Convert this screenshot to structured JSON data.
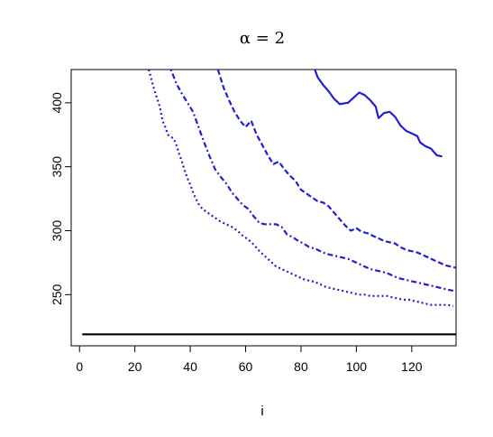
{
  "chart_data": {
    "type": "line",
    "title": "α = 2",
    "xlabel": "i",
    "ylabel": "",
    "xlim": [
      -3,
      136
    ],
    "ylim": [
      210,
      426
    ],
    "x_ticks": [
      0,
      20,
      40,
      60,
      80,
      100,
      120
    ],
    "y_ticks": [
      250,
      300,
      350,
      400
    ],
    "grid": false,
    "legend": "none",
    "series": [
      {
        "style": "solid",
        "color": "#1f1fd6",
        "points": [
          [
            85,
            426
          ],
          [
            86,
            420
          ],
          [
            88,
            414
          ],
          [
            90,
            409
          ],
          [
            92,
            403
          ],
          [
            94,
            399
          ],
          [
            97,
            400
          ],
          [
            99,
            404
          ],
          [
            101,
            408
          ],
          [
            103,
            406
          ],
          [
            105,
            402
          ],
          [
            107,
            397
          ],
          [
            108,
            388
          ],
          [
            110,
            392
          ],
          [
            112,
            393
          ],
          [
            114,
            389
          ],
          [
            116,
            382
          ],
          [
            118,
            378
          ],
          [
            120,
            376
          ],
          [
            122,
            374
          ],
          [
            123,
            369
          ],
          [
            125,
            366
          ],
          [
            127,
            364
          ],
          [
            129,
            359
          ],
          [
            131,
            358
          ]
        ]
      },
      {
        "style": "dashed",
        "color": "#1f1fd6",
        "points": [
          [
            50,
            426
          ],
          [
            52,
            412
          ],
          [
            54,
            402
          ],
          [
            56,
            393
          ],
          [
            58,
            386
          ],
          [
            60,
            381
          ],
          [
            62,
            386
          ],
          [
            64,
            375
          ],
          [
            66,
            367
          ],
          [
            68,
            359
          ],
          [
            70,
            352
          ],
          [
            72,
            354
          ],
          [
            74,
            348
          ],
          [
            76,
            343
          ],
          [
            78,
            339
          ],
          [
            80,
            332
          ],
          [
            82,
            329
          ],
          [
            84,
            326
          ],
          [
            86,
            323
          ],
          [
            88,
            322
          ],
          [
            90,
            319
          ],
          [
            92,
            314
          ],
          [
            94,
            309
          ],
          [
            96,
            304
          ],
          [
            98,
            300
          ],
          [
            100,
            302
          ],
          [
            102,
            299
          ],
          [
            104,
            298
          ],
          [
            106,
            296
          ],
          [
            108,
            294
          ],
          [
            110,
            292
          ],
          [
            112,
            291
          ],
          [
            114,
            290
          ],
          [
            116,
            287
          ],
          [
            118,
            285
          ],
          [
            120,
            284
          ],
          [
            122,
            283
          ],
          [
            124,
            281
          ],
          [
            126,
            279
          ],
          [
            128,
            277
          ],
          [
            130,
            275
          ],
          [
            132,
            273
          ],
          [
            134,
            272
          ],
          [
            136,
            271
          ]
        ]
      },
      {
        "style": "dotdash",
        "color": "#1f1fd6",
        "points": [
          [
            33,
            426
          ],
          [
            35,
            415
          ],
          [
            37,
            407
          ],
          [
            39,
            400
          ],
          [
            41,
            393
          ],
          [
            43,
            381
          ],
          [
            45,
            369
          ],
          [
            47,
            358
          ],
          [
            49,
            348
          ],
          [
            51,
            342
          ],
          [
            53,
            337
          ],
          [
            55,
            330
          ],
          [
            57,
            325
          ],
          [
            59,
            320
          ],
          [
            61,
            317
          ],
          [
            63,
            311
          ],
          [
            65,
            306
          ],
          [
            67,
            305
          ],
          [
            69,
            305
          ],
          [
            71,
            305
          ],
          [
            73,
            303
          ],
          [
            75,
            297
          ],
          [
            77,
            295
          ],
          [
            79,
            292
          ],
          [
            81,
            290
          ],
          [
            83,
            287
          ],
          [
            85,
            286
          ],
          [
            87,
            284
          ],
          [
            89,
            282
          ],
          [
            91,
            281
          ],
          [
            93,
            280
          ],
          [
            95,
            279
          ],
          [
            97,
            278
          ],
          [
            99,
            276
          ],
          [
            101,
            274
          ],
          [
            103,
            272
          ],
          [
            105,
            270
          ],
          [
            107,
            269
          ],
          [
            109,
            268
          ],
          [
            111,
            267
          ],
          [
            113,
            265
          ],
          [
            115,
            263
          ],
          [
            117,
            262
          ],
          [
            119,
            261
          ],
          [
            121,
            260
          ],
          [
            123,
            259
          ],
          [
            125,
            258
          ],
          [
            127,
            257
          ],
          [
            129,
            256
          ],
          [
            131,
            255
          ],
          [
            133,
            254
          ],
          [
            135,
            253
          ]
        ]
      },
      {
        "style": "dotted",
        "color": "#1f1fd6",
        "points": [
          [
            25,
            426
          ],
          [
            27,
            410
          ],
          [
            29,
            397
          ],
          [
            30,
            386
          ],
          [
            31,
            381
          ],
          [
            32,
            375
          ],
          [
            34,
            372
          ],
          [
            35,
            367
          ],
          [
            36,
            360
          ],
          [
            37,
            354
          ],
          [
            38,
            347
          ],
          [
            39,
            341
          ],
          [
            40,
            336
          ],
          [
            41,
            330
          ],
          [
            42,
            325
          ],
          [
            43,
            321
          ],
          [
            44,
            318
          ],
          [
            45,
            316
          ],
          [
            47,
            313
          ],
          [
            49,
            310
          ],
          [
            51,
            307
          ],
          [
            53,
            305
          ],
          [
            55,
            303
          ],
          [
            57,
            300
          ],
          [
            59,
            296
          ],
          [
            61,
            293
          ],
          [
            63,
            289
          ],
          [
            65,
            284
          ],
          [
            67,
            280
          ],
          [
            69,
            276
          ],
          [
            71,
            272
          ],
          [
            73,
            270
          ],
          [
            75,
            268
          ],
          [
            77,
            266
          ],
          [
            79,
            264
          ],
          [
            81,
            262
          ],
          [
            83,
            261
          ],
          [
            85,
            260
          ],
          [
            87,
            258
          ],
          [
            89,
            256
          ],
          [
            91,
            255
          ],
          [
            93,
            254
          ],
          [
            95,
            253
          ],
          [
            97,
            252
          ],
          [
            99,
            251
          ],
          [
            101,
            250
          ],
          [
            103,
            250
          ],
          [
            105,
            249
          ],
          [
            107,
            249
          ],
          [
            109,
            249
          ],
          [
            111,
            249
          ],
          [
            113,
            248
          ],
          [
            115,
            247
          ],
          [
            117,
            246
          ],
          [
            119,
            246
          ],
          [
            121,
            245
          ],
          [
            123,
            244
          ],
          [
            125,
            243
          ],
          [
            127,
            242
          ],
          [
            129,
            242
          ],
          [
            131,
            242
          ],
          [
            133,
            242
          ],
          [
            135,
            241
          ]
        ]
      },
      {
        "style": "solid",
        "color": "#000000",
        "points": [
          [
            1,
            219
          ],
          [
            136,
            219
          ]
        ]
      }
    ]
  }
}
